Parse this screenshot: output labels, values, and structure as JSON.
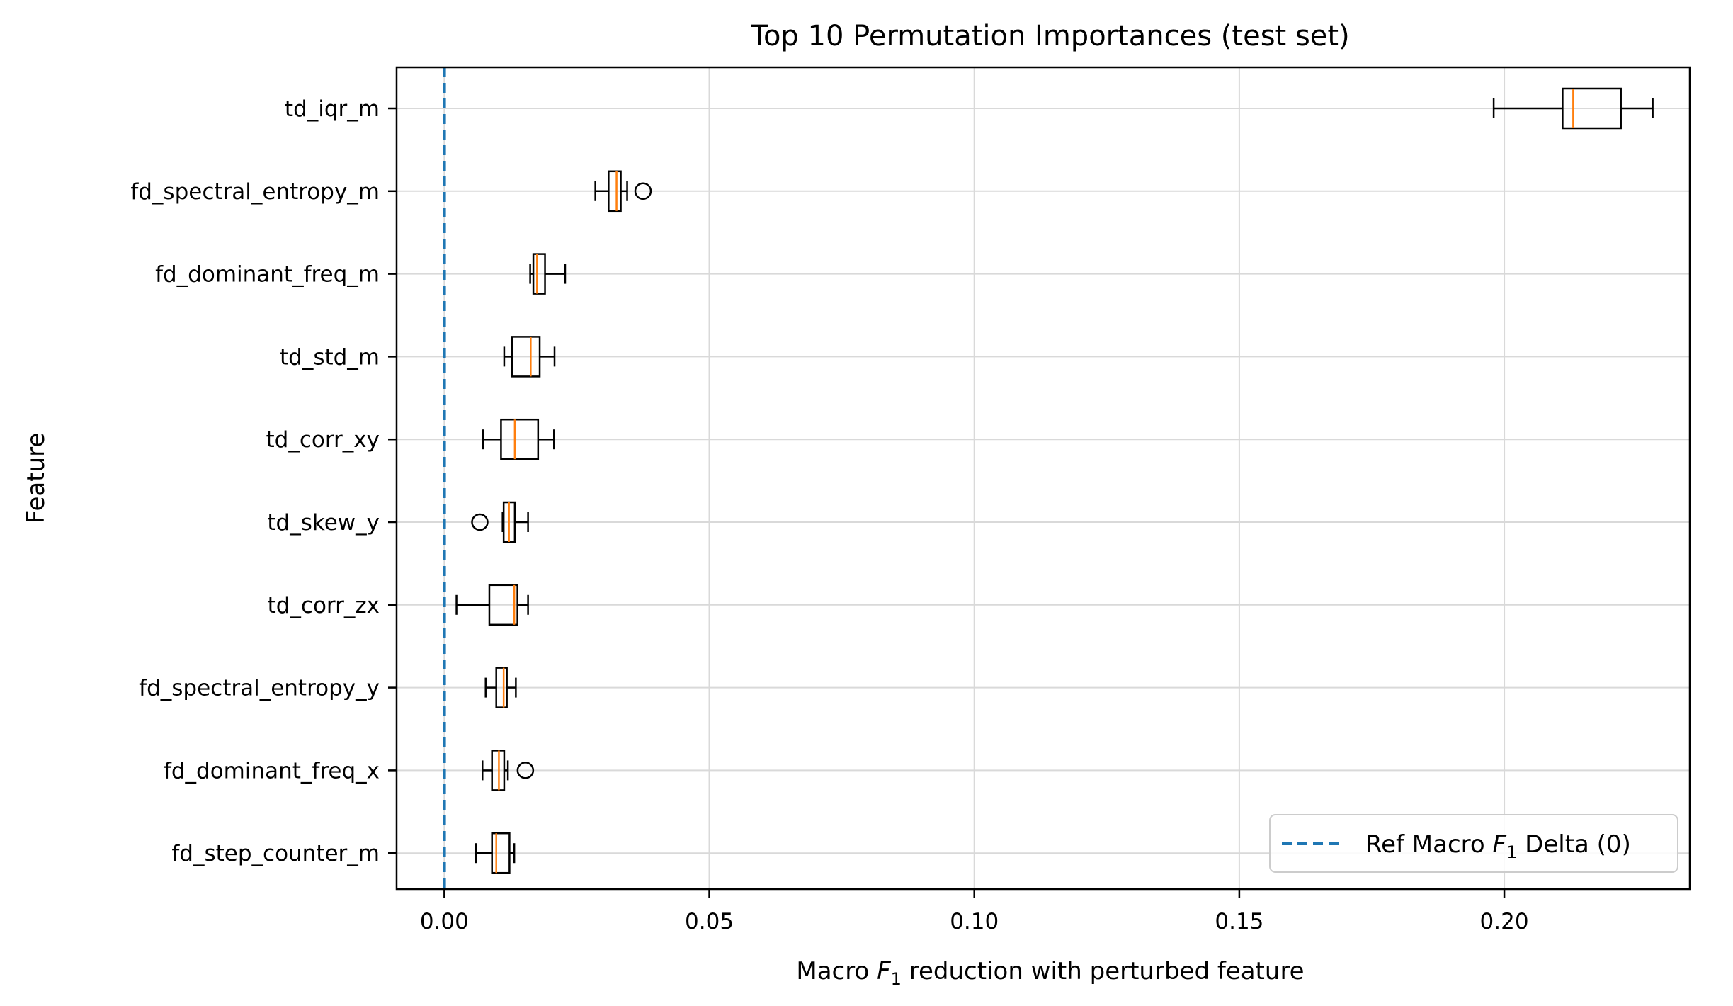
{
  "chart_data": {
    "type": "boxplot",
    "orientation": "horizontal",
    "title": "Top 10 Permutation Importances (test set)",
    "xlabel_prefix": "Macro ",
    "xlabel_var": "F",
    "xlabel_sub": "1",
    "xlabel_suffix": " reduction with perturbed feature",
    "ylabel": "Feature",
    "xlim": [
      -0.009,
      0.235
    ],
    "xticks": [
      0.0,
      0.05,
      0.1,
      0.15,
      0.2
    ],
    "xtick_labels": [
      "0.00",
      "0.05",
      "0.10",
      "0.15",
      "0.20"
    ],
    "grid": true,
    "reference_line": {
      "x": 0,
      "style": "dashed",
      "color": "#1f77b4"
    },
    "legend": {
      "placement": "lower-right",
      "label_prefix": "Ref Macro ",
      "label_var": "F",
      "label_sub": "1",
      "label_suffix": " Delta (0)"
    },
    "colors": {
      "box": "#000000",
      "median": "#ff7f0e",
      "reference": "#1f77b4",
      "grid": "#d9d9d9"
    },
    "features": [
      {
        "name": "td_iqr_m",
        "whisker_low": 0.198,
        "q1": 0.211,
        "median": 0.213,
        "q3": 0.222,
        "whisker_high": 0.228,
        "outliers": []
      },
      {
        "name": "fd_spectral_entropy_m",
        "whisker_low": 0.0285,
        "q1": 0.031,
        "median": 0.0325,
        "q3": 0.0333,
        "whisker_high": 0.0345,
        "outliers": [
          0.0375
        ]
      },
      {
        "name": "fd_dominant_freq_m",
        "whisker_low": 0.0162,
        "q1": 0.0168,
        "median": 0.0175,
        "q3": 0.019,
        "whisker_high": 0.0228,
        "outliers": []
      },
      {
        "name": "td_std_m",
        "whisker_low": 0.0113,
        "q1": 0.0128,
        "median": 0.0163,
        "q3": 0.018,
        "whisker_high": 0.0208,
        "outliers": []
      },
      {
        "name": "td_corr_xy",
        "whisker_low": 0.0073,
        "q1": 0.0107,
        "median": 0.0133,
        "q3": 0.0177,
        "whisker_high": 0.0207,
        "outliers": []
      },
      {
        "name": "td_skew_y",
        "whisker_low": 0.011,
        "q1": 0.0112,
        "median": 0.0122,
        "q3": 0.0133,
        "whisker_high": 0.0158,
        "outliers": [
          0.0067
        ]
      },
      {
        "name": "td_corr_zx",
        "whisker_low": 0.0023,
        "q1": 0.0085,
        "median": 0.0132,
        "q3": 0.0138,
        "whisker_high": 0.0158,
        "outliers": []
      },
      {
        "name": "fd_spectral_entropy_y",
        "whisker_low": 0.0078,
        "q1": 0.0098,
        "median": 0.0112,
        "q3": 0.0118,
        "whisker_high": 0.0135,
        "outliers": []
      },
      {
        "name": "fd_dominant_freq_x",
        "whisker_low": 0.0072,
        "q1": 0.009,
        "median": 0.0103,
        "q3": 0.0113,
        "whisker_high": 0.012,
        "outliers": [
          0.0153
        ]
      },
      {
        "name": "fd_step_counter_m",
        "whisker_low": 0.006,
        "q1": 0.009,
        "median": 0.0098,
        "q3": 0.0123,
        "whisker_high": 0.0132,
        "outliers": []
      }
    ]
  }
}
